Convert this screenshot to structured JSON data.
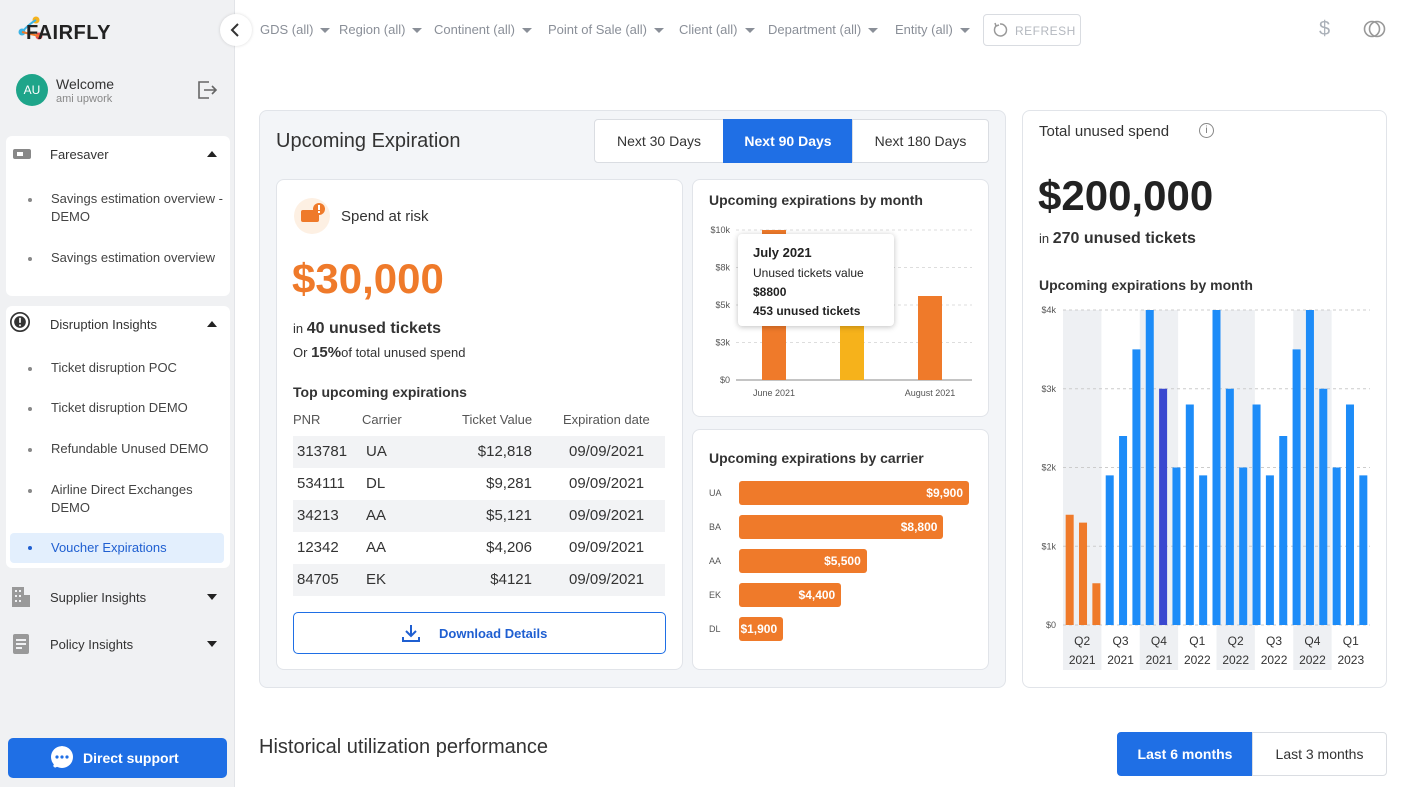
{
  "app": {
    "brand": "FAIRFLY"
  },
  "user": {
    "initials": "AU",
    "welcome": "Welcome",
    "name": "ami upwork"
  },
  "sidebar": {
    "faresaver": {
      "label": "Faresaver",
      "items": [
        "Savings estimation overview - DEMO",
        "Savings estimation overview"
      ]
    },
    "disruption": {
      "label": "Disruption Insights",
      "items": [
        "Ticket disruption POC",
        "Ticket disruption DEMO",
        "Refundable Unused DEMO",
        "Airline Direct Exchanges DEMO",
        "Voucher Expirations"
      ]
    },
    "supplier": {
      "label": "Supplier Insights"
    },
    "policy": {
      "label": "Policy Insights"
    },
    "support_label": "Direct support"
  },
  "filters": [
    "GDS (all)",
    "Region (all)",
    "Continent (all)",
    "Point of Sale (all)",
    "Client (all)",
    "Department (all)",
    "Entity (all)"
  ],
  "refresh_label": "REFRESH",
  "currency_symbol": "$",
  "upcoming": {
    "title": "Upcoming Expiration",
    "ranges": [
      "Next 30 Days",
      "Next 90 Days",
      "Next 180 Days"
    ],
    "active_range": "Next 90 Days",
    "spend_at_risk": {
      "title": "Spend at risk",
      "amount": "$30,000",
      "in_word": "in",
      "tickets": "40 unused tickets",
      "or_word": "Or",
      "percent": "15%",
      "percent_suffix": "of total unused spend",
      "top_title": "Top upcoming expirations",
      "columns": [
        "PNR",
        "Carrier",
        "Ticket Value",
        "Expiration date"
      ],
      "rows": [
        [
          "313781",
          "UA",
          "$12,818",
          "09/09/2021"
        ],
        [
          "534111",
          "DL",
          "$9,281",
          "09/09/2021"
        ],
        [
          "34213",
          "AA",
          "$5,121",
          "09/09/2021"
        ],
        [
          "12342",
          "AA",
          "$4,206",
          "09/09/2021"
        ],
        [
          "84705",
          "EK",
          "$4121",
          "09/09/2021"
        ]
      ],
      "download_label": "Download Details"
    },
    "tooltip": {
      "month": "July 2021",
      "label": "Unused tickets value",
      "value": "$8800",
      "tickets": "453 unused tickets"
    }
  },
  "total_unused": {
    "title": "Total unused spend",
    "info": "i",
    "amount": "$200,000",
    "in_word": "in",
    "tickets": "270 unused tickets"
  },
  "historical": {
    "title": "Historical utilization performance",
    "ranges": [
      "Last 6 months",
      "Last 3 months"
    ],
    "active": "Last 6 months"
  },
  "chart_data": [
    {
      "type": "bar",
      "title": "Upcoming expirations by month",
      "categories": [
        "June 2021",
        "July 2021",
        "August 2021"
      ],
      "tick_labels": [
        "June 2021",
        "August 2021"
      ],
      "values": [
        10000,
        8800,
        5600
      ],
      "ylim": [
        0,
        10000
      ],
      "yticks": [
        "$0",
        "$3k",
        "$5k",
        "$8k",
        "$10k"
      ],
      "ytick_values": [
        0,
        2500,
        5000,
        7500,
        10000
      ],
      "colors": [
        "#ef7a2a",
        "#f6b21b",
        "#ef7a2a"
      ]
    },
    {
      "type": "bar",
      "orientation": "horizontal",
      "title": "Upcoming expirations by carrier",
      "categories": [
        "UA",
        "BA",
        "AA",
        "EK",
        "DL"
      ],
      "values": [
        9900,
        8800,
        5500,
        4400,
        1900
      ],
      "labels": [
        "$9,900",
        "$8,800",
        "$5,500",
        "$4,400",
        "$1,900"
      ],
      "xlim": [
        0,
        9900
      ],
      "color": "#ef7a2a"
    },
    {
      "type": "bar",
      "title": "Upcoming expirations by month",
      "quarters": [
        [
          "Q2",
          "2021"
        ],
        [
          "Q3",
          "2021"
        ],
        [
          "Q4",
          "2021"
        ],
        [
          "Q1",
          "2022"
        ],
        [
          "Q2",
          "2022"
        ],
        [
          "Q3",
          "2022"
        ],
        [
          "Q4",
          "2022"
        ],
        [
          "Q1",
          "2023"
        ]
      ],
      "values": [
        1400,
        1300,
        530,
        1900,
        2400,
        3500,
        4000,
        3000,
        2000,
        2800,
        1900,
        4000,
        3000,
        2000,
        2800,
        1900,
        2400,
        3500,
        4000,
        3000,
        2000,
        2800,
        1900
      ],
      "colors": [
        "#ef7a2a",
        "#ef7a2a",
        "#ef7a2a",
        "#1d8cf8",
        "#1d8cf8",
        "#1d8cf8",
        "#1d8cf8",
        "#3a48d0",
        "#1d8cf8",
        "#1d8cf8",
        "#1d8cf8",
        "#1d8cf8",
        "#1d8cf8",
        "#1d8cf8",
        "#1d8cf8",
        "#1d8cf8",
        "#1d8cf8",
        "#1d8cf8",
        "#1d8cf8",
        "#1d8cf8",
        "#1d8cf8",
        "#1d8cf8",
        "#1d8cf8"
      ],
      "ylim": [
        0,
        4000
      ],
      "yticks": [
        "$0",
        "$1k",
        "$2k",
        "$3k",
        "$4k"
      ],
      "ytick_values": [
        0,
        1000,
        2000,
        3000,
        4000
      ]
    }
  ]
}
